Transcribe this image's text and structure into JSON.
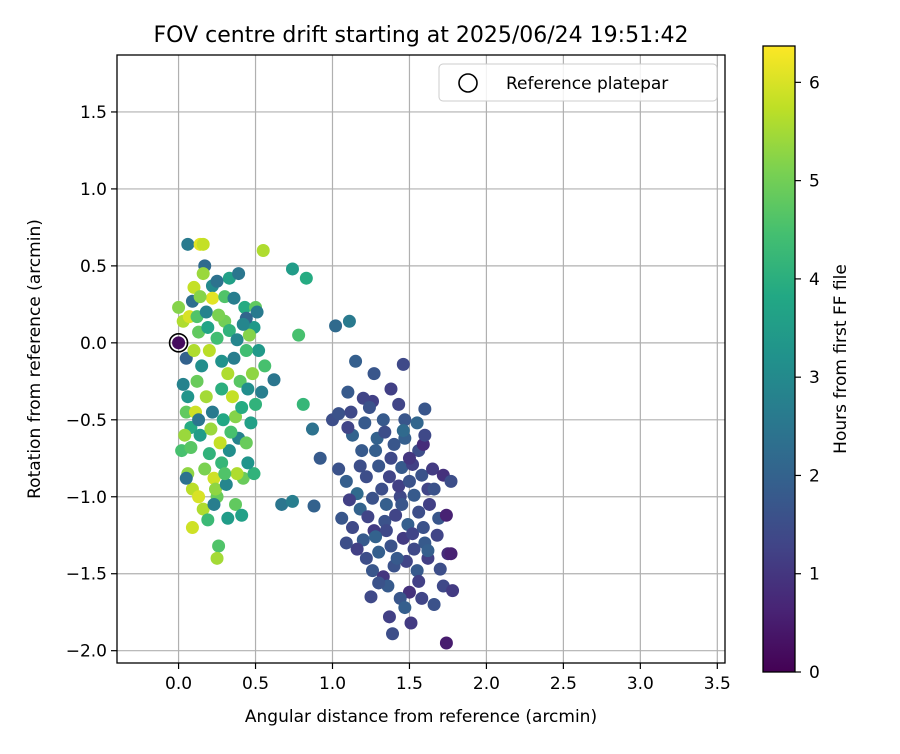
{
  "chart_data": {
    "type": "scatter",
    "title": "FOV centre drift starting at 2025/06/24 19:51:42",
    "xlabel": "Angular distance from reference (arcmin)",
    "ylabel": "Rotation from reference (arcmin)",
    "xlim": [
      -0.4,
      3.55
    ],
    "ylim": [
      -2.08,
      1.87
    ],
    "xticks": [
      0.0,
      0.5,
      1.0,
      1.5,
      2.0,
      2.5,
      3.0,
      3.5
    ],
    "xtick_labels": [
      "0.0",
      "0.5",
      "1.0",
      "1.5",
      "2.0",
      "2.5",
      "3.0",
      "3.5"
    ],
    "yticks": [
      1.5,
      1.0,
      0.5,
      0.0,
      -0.5,
      -1.0,
      -1.5,
      -2.0
    ],
    "ytick_labels": [
      "1.5",
      "1.0",
      "0.5",
      "0.0",
      "−0.5",
      "−1.0",
      "−1.5",
      "−2.0"
    ],
    "grid": true,
    "legend": {
      "position": "top-right",
      "entries": [
        {
          "label": "Reference platepar",
          "marker": "open-circle"
        }
      ]
    },
    "reference_point": {
      "x": 0.0,
      "y": 0.0
    },
    "colorbar": {
      "label": "Hours from first FF file",
      "colormap": "viridis",
      "range": [
        0,
        6.37
      ],
      "ticks": [
        0,
        1,
        2,
        3,
        4,
        5,
        6
      ],
      "tick_labels": [
        "0",
        "1",
        "2",
        "3",
        "4",
        "5",
        "6"
      ]
    },
    "series": [
      {
        "color_by": "hours",
        "points": [
          [
            0.0,
            0.0,
            0.2
          ],
          [
            0.03,
            -0.27,
            2.8
          ],
          [
            0.05,
            -0.1,
            2.0
          ],
          [
            0.06,
            -0.35,
            3.3
          ],
          [
            0.08,
            -0.55,
            3.9
          ],
          [
            0.0,
            0.23,
            5.2
          ],
          [
            0.03,
            0.14,
            5.6
          ],
          [
            0.07,
            0.17,
            6.0
          ],
          [
            0.09,
            0.27,
            2.3
          ],
          [
            0.06,
            0.64,
            2.6
          ],
          [
            0.14,
            0.64,
            6.1
          ],
          [
            0.16,
            0.64,
            5.8
          ],
          [
            0.17,
            0.5,
            2.2
          ],
          [
            0.16,
            0.45,
            5.4
          ],
          [
            0.22,
            0.37,
            3.0
          ],
          [
            0.25,
            0.4,
            2.4
          ],
          [
            0.22,
            0.29,
            6.1
          ],
          [
            0.1,
            0.36,
            5.8
          ],
          [
            0.14,
            0.3,
            5.2
          ],
          [
            0.12,
            0.17,
            4.6
          ],
          [
            0.18,
            0.2,
            2.8
          ],
          [
            0.3,
            0.3,
            4.6
          ],
          [
            0.33,
            0.42,
            3.6
          ],
          [
            0.39,
            0.45,
            2.5
          ],
          [
            0.36,
            0.29,
            2.7
          ],
          [
            0.43,
            0.23,
            3.9
          ],
          [
            0.5,
            0.23,
            4.8
          ],
          [
            0.51,
            0.2,
            2.6
          ],
          [
            0.49,
            0.1,
            3.4
          ],
          [
            0.44,
            0.16,
            2.1
          ],
          [
            0.55,
            0.6,
            5.6
          ],
          [
            0.74,
            0.48,
            3.5
          ],
          [
            0.83,
            0.42,
            3.9
          ],
          [
            0.78,
            0.05,
            4.5
          ],
          [
            0.81,
            -0.4,
            4.2
          ],
          [
            0.05,
            -0.45,
            4.8
          ],
          [
            0.04,
            -0.6,
            5.4
          ],
          [
            0.02,
            -0.7,
            4.5
          ],
          [
            0.06,
            -0.85,
            5.3
          ],
          [
            0.09,
            -0.95,
            5.7
          ],
          [
            0.05,
            -0.88,
            2.4
          ],
          [
            0.13,
            -1.0,
            6.0
          ],
          [
            0.16,
            -1.08,
            5.6
          ],
          [
            0.19,
            -1.15,
            4.3
          ],
          [
            0.09,
            -1.2,
            5.9
          ],
          [
            0.25,
            -1.0,
            4.9
          ],
          [
            0.26,
            -1.32,
            4.6
          ],
          [
            0.25,
            -1.4,
            5.5
          ],
          [
            0.32,
            -1.14,
            3.5
          ],
          [
            0.37,
            -1.05,
            4.8
          ],
          [
            0.41,
            -1.12,
            3.6
          ],
          [
            0.23,
            -0.88,
            5.9
          ],
          [
            0.28,
            -0.78,
            4.2
          ],
          [
            0.33,
            -0.7,
            3.1
          ],
          [
            0.39,
            -0.62,
            2.8
          ],
          [
            0.42,
            -0.88,
            4.9
          ],
          [
            0.49,
            -0.85,
            4.1
          ],
          [
            0.37,
            -0.48,
            5.2
          ],
          [
            0.47,
            -0.52,
            3.6
          ],
          [
            0.5,
            -0.4,
            4.1
          ],
          [
            0.54,
            -0.32,
            2.7
          ],
          [
            0.56,
            -0.15,
            4.5
          ],
          [
            0.52,
            -0.05,
            3.4
          ],
          [
            0.46,
            0.05,
            5.2
          ],
          [
            0.42,
            0.12,
            2.9
          ],
          [
            0.3,
            0.14,
            5.0
          ],
          [
            0.25,
            0.03,
            4.4
          ],
          [
            0.2,
            -0.05,
            5.7
          ],
          [
            0.15,
            -0.15,
            3.1
          ],
          [
            0.12,
            -0.25,
            4.9
          ],
          [
            0.18,
            -0.35,
            5.5
          ],
          [
            0.22,
            -0.45,
            2.6
          ],
          [
            0.28,
            -0.3,
            4.0
          ],
          [
            0.32,
            -0.2,
            5.6
          ],
          [
            0.36,
            -0.1,
            2.7
          ],
          [
            0.4,
            -0.25,
            4.7
          ],
          [
            0.45,
            -0.3,
            3.1
          ],
          [
            0.48,
            -0.2,
            5.3
          ],
          [
            0.34,
            -0.58,
            4.5
          ],
          [
            0.27,
            -0.65,
            5.8
          ],
          [
            0.2,
            -0.72,
            4.1
          ],
          [
            0.14,
            -0.6,
            3.5
          ],
          [
            0.11,
            -0.45,
            5.9
          ],
          [
            0.08,
            -0.68,
            4.7
          ],
          [
            0.17,
            -0.82,
            5.1
          ],
          [
            0.24,
            -0.95,
            5.3
          ],
          [
            0.31,
            -0.92,
            2.9
          ],
          [
            0.38,
            -0.85,
            5.6
          ],
          [
            0.45,
            -0.78,
            3.3
          ],
          [
            0.44,
            -0.65,
            4.9
          ],
          [
            0.29,
            -0.5,
            3.8
          ],
          [
            0.21,
            -0.56,
            5.4
          ],
          [
            0.13,
            -0.5,
            2.5
          ],
          [
            0.1,
            -0.05,
            5.6
          ],
          [
            0.13,
            0.07,
            4.8
          ],
          [
            0.19,
            0.1,
            3.7
          ],
          [
            0.26,
            0.18,
            5.1
          ],
          [
            0.33,
            0.08,
            4.1
          ],
          [
            0.38,
            0.02,
            2.9
          ],
          [
            0.44,
            -0.05,
            4.4
          ],
          [
            0.28,
            -0.12,
            3.2
          ],
          [
            0.35,
            -0.35,
            5.8
          ],
          [
            0.41,
            -0.42,
            3.9
          ],
          [
            0.3,
            -0.85,
            4.6
          ],
          [
            0.23,
            -1.05,
            2.7
          ],
          [
            0.62,
            -0.24,
            2.5
          ],
          [
            0.67,
            -1.05,
            2.5
          ],
          [
            0.74,
            -1.03,
            2.7
          ],
          [
            0.88,
            -1.06,
            2.0
          ],
          [
            0.87,
            -0.56,
            2.4
          ],
          [
            0.92,
            -0.75,
            1.8
          ],
          [
            1.02,
            0.11,
            2.2
          ],
          [
            1.11,
            0.14,
            2.6
          ],
          [
            1.0,
            -0.5,
            1.5
          ],
          [
            1.15,
            -0.12,
            1.9
          ],
          [
            1.04,
            -0.46,
            1.6
          ],
          [
            1.1,
            -0.32,
            1.8
          ],
          [
            1.13,
            -0.6,
            2.0
          ],
          [
            1.27,
            -0.2,
            1.7
          ],
          [
            1.46,
            -0.14,
            1.4
          ],
          [
            1.26,
            -0.38,
            1.2
          ],
          [
            1.2,
            -0.36,
            1.3
          ],
          [
            1.24,
            -0.42,
            1.6
          ],
          [
            1.33,
            -0.5,
            1.8
          ],
          [
            1.38,
            -0.3,
            1.2
          ],
          [
            1.47,
            -0.5,
            1.7
          ],
          [
            1.55,
            -0.52,
            2.1
          ],
          [
            1.6,
            -0.43,
            1.7
          ],
          [
            1.56,
            -0.7,
            1.5
          ],
          [
            1.47,
            -0.62,
            1.9
          ],
          [
            1.59,
            -0.66,
            0.8
          ],
          [
            1.38,
            -0.75,
            1.4
          ],
          [
            1.29,
            -0.62,
            2.0
          ],
          [
            1.19,
            -0.7,
            1.8
          ],
          [
            1.1,
            -0.55,
            1.3
          ],
          [
            1.04,
            -0.82,
            1.6
          ],
          [
            1.09,
            -0.9,
            1.9
          ],
          [
            1.16,
            -0.98,
            2.2
          ],
          [
            1.22,
            -0.87,
            1.5
          ],
          [
            1.3,
            -0.8,
            1.7
          ],
          [
            1.37,
            -0.87,
            1.3
          ],
          [
            1.45,
            -0.81,
            1.8
          ],
          [
            1.52,
            -0.79,
            1.2
          ],
          [
            1.58,
            -0.86,
            1.6
          ],
          [
            1.65,
            -0.82,
            1.1
          ],
          [
            1.72,
            -0.86,
            0.9
          ],
          [
            1.77,
            -0.9,
            1.5
          ],
          [
            1.62,
            -0.95,
            1.3
          ],
          [
            1.53,
            -0.99,
            1.8
          ],
          [
            1.44,
            -1.0,
            1.4
          ],
          [
            1.35,
            -1.05,
            1.9
          ],
          [
            1.26,
            -1.01,
            1.6
          ],
          [
            1.18,
            -1.08,
            2.0
          ],
          [
            1.11,
            -1.02,
            1.2
          ],
          [
            1.06,
            -1.14,
            1.7
          ],
          [
            1.13,
            -1.2,
            1.4
          ],
          [
            1.2,
            -1.28,
            1.8
          ],
          [
            1.27,
            -1.22,
            1.1
          ],
          [
            1.34,
            -1.16,
            1.6
          ],
          [
            1.41,
            -1.12,
            1.3
          ],
          [
            1.49,
            -1.18,
            1.9
          ],
          [
            1.56,
            -1.1,
            1.5
          ],
          [
            1.63,
            -1.05,
            1.2
          ],
          [
            1.69,
            -1.14,
            1.7
          ],
          [
            1.74,
            -1.12,
            0.6
          ],
          [
            1.68,
            -1.25,
            1.3
          ],
          [
            1.6,
            -1.3,
            1.8
          ],
          [
            1.53,
            -1.34,
            1.4
          ],
          [
            1.46,
            -1.27,
            1.1
          ],
          [
            1.38,
            -1.32,
            1.6
          ],
          [
            1.3,
            -1.36,
            1.9
          ],
          [
            1.22,
            -1.4,
            1.5
          ],
          [
            1.16,
            -1.34,
            1.2
          ],
          [
            1.26,
            -1.48,
            1.7
          ],
          [
            1.33,
            -1.52,
            1.0
          ],
          [
            1.4,
            -1.45,
            1.6
          ],
          [
            1.48,
            -1.42,
            1.3
          ],
          [
            1.55,
            -1.48,
            1.8
          ],
          [
            1.62,
            -1.4,
            1.2
          ],
          [
            1.7,
            -1.47,
            1.5
          ],
          [
            1.75,
            -1.37,
            0.8
          ],
          [
            1.77,
            -1.37,
            0.6
          ],
          [
            1.72,
            -1.58,
            1.4
          ],
          [
            1.78,
            -1.61,
            1.1
          ],
          [
            1.66,
            -1.7,
            1.6
          ],
          [
            1.58,
            -1.66,
            1.3
          ],
          [
            1.5,
            -1.62,
            0.9
          ],
          [
            1.44,
            -1.66,
            1.7
          ],
          [
            1.36,
            -1.58,
            1.8
          ],
          [
            1.25,
            -1.65,
            1.4
          ],
          [
            1.37,
            -1.78,
            1.2
          ],
          [
            1.39,
            -1.89,
            1.5
          ],
          [
            1.47,
            -1.72,
            1.9
          ],
          [
            1.51,
            -1.82,
            1.1
          ],
          [
            1.74,
            -1.95,
            0.5
          ],
          [
            1.6,
            -0.6,
            1.4
          ],
          [
            1.66,
            -0.95,
            1.6
          ],
          [
            1.4,
            -0.66,
            1.7
          ],
          [
            1.32,
            -0.95,
            1.5
          ],
          [
            1.23,
            -1.13,
            1.3
          ],
          [
            1.43,
            -0.93,
            1.2
          ],
          [
            1.5,
            -0.9,
            1.6
          ],
          [
            1.28,
            -0.7,
            1.9
          ],
          [
            1.35,
            -1.22,
            1.4
          ],
          [
            1.45,
            -1.05,
            1.7
          ],
          [
            1.28,
            -1.26,
            2.0
          ],
          [
            1.52,
            -1.24,
            1.3
          ],
          [
            1.59,
            -1.2,
            1.6
          ],
          [
            1.42,
            -1.4,
            1.8
          ],
          [
            1.18,
            -0.8,
            1.5
          ],
          [
            1.43,
            -0.4,
            1.3
          ],
          [
            1.5,
            -0.75,
            1.0
          ],
          [
            1.62,
            -1.35,
            1.9
          ],
          [
            1.56,
            -1.55,
            1.2
          ],
          [
            1.3,
            -1.56,
            1.6
          ],
          [
            1.21,
            -0.52,
            1.8
          ],
          [
            1.34,
            -0.58,
            1.5
          ],
          [
            1.46,
            -0.57,
            2.2
          ],
          [
            1.12,
            -0.45,
            1.4
          ],
          [
            1.09,
            -1.3,
            1.5
          ]
        ]
      }
    ]
  }
}
